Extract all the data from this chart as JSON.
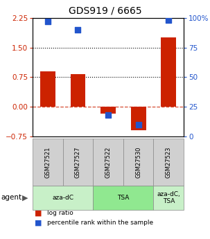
{
  "title": "GDS919 / 6665",
  "samples": [
    "GSM27521",
    "GSM27527",
    "GSM27522",
    "GSM27530",
    "GSM27523"
  ],
  "log_ratio": [
    0.9,
    0.82,
    -0.18,
    -0.6,
    1.75
  ],
  "percentile": [
    97,
    90,
    18,
    10,
    98
  ],
  "ylim_left": [
    -0.75,
    2.25
  ],
  "ylim_right": [
    0,
    100
  ],
  "yticks_left": [
    -0.75,
    0,
    0.75,
    1.5,
    2.25
  ],
  "yticks_right": [
    0,
    25,
    50,
    75,
    100
  ],
  "hlines_dotted": [
    0.75,
    1.5
  ],
  "hline_dashed": 0,
  "agent_labels": [
    "aza-dC",
    "TSA",
    "aza-dC,\nTSA"
  ],
  "agent_groups": [
    [
      0,
      1
    ],
    [
      2,
      3
    ],
    [
      4
    ]
  ],
  "agent_colors_light": "#c8f0c8",
  "agent_colors_mid": "#90e890",
  "agent_colors": [
    "#c8f0c8",
    "#90e890",
    "#c8f0c8"
  ],
  "bar_color": "#cc2200",
  "dot_color": "#2255cc",
  "bar_width": 0.5,
  "dot_size": 40,
  "background_color": "#ffffff",
  "plot_bg": "#ffffff",
  "label_color_left": "#cc2200",
  "label_color_right": "#2255cc",
  "sample_box_color": "#d0d0d0"
}
